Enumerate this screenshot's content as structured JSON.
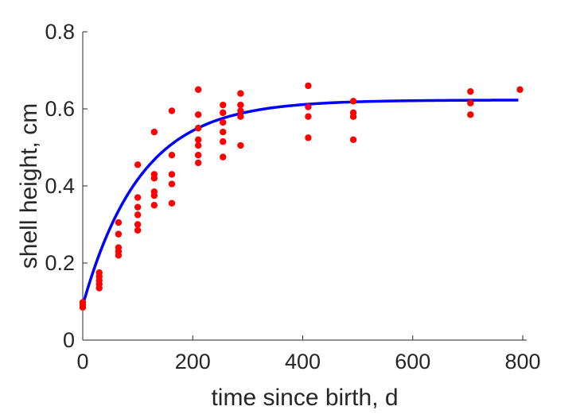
{
  "chart_data": {
    "type": "scatter",
    "xlabel": "time since birth, d",
    "ylabel": "shell height, cm",
    "xlim": [
      0,
      800
    ],
    "ylim": [
      0,
      0.8
    ],
    "xticks": [
      0,
      200,
      400,
      600,
      800
    ],
    "xtick_labels": [
      "0",
      "200",
      "400",
      "600",
      "800"
    ],
    "yticks": [
      0,
      0.2,
      0.4,
      0.6,
      0.8
    ],
    "ytick_labels": [
      "0",
      "0.2",
      "0.4",
      "0.6",
      "0.8"
    ],
    "grid": false,
    "legend": "none",
    "series": [
      {
        "kind": "points",
        "color": "#ff0000",
        "points": [
          [
            0,
            0.085
          ],
          [
            0,
            0.092
          ],
          [
            0,
            0.098
          ],
          [
            30,
            0.135
          ],
          [
            30,
            0.145
          ],
          [
            30,
            0.155
          ],
          [
            30,
            0.165
          ],
          [
            30,
            0.175
          ],
          [
            65,
            0.22
          ],
          [
            65,
            0.23
          ],
          [
            65,
            0.24
          ],
          [
            65,
            0.275
          ],
          [
            65,
            0.305
          ],
          [
            100,
            0.285
          ],
          [
            100,
            0.3
          ],
          [
            100,
            0.325
          ],
          [
            100,
            0.345
          ],
          [
            100,
            0.37
          ],
          [
            100,
            0.455
          ],
          [
            130,
            0.35
          ],
          [
            130,
            0.375
          ],
          [
            130,
            0.385
          ],
          [
            130,
            0.42
          ],
          [
            130,
            0.43
          ],
          [
            130,
            0.54
          ],
          [
            162,
            0.355
          ],
          [
            162,
            0.405
          ],
          [
            162,
            0.43
          ],
          [
            162,
            0.48
          ],
          [
            162,
            0.595
          ],
          [
            210,
            0.46
          ],
          [
            210,
            0.48
          ],
          [
            210,
            0.505
          ],
          [
            210,
            0.52
          ],
          [
            210,
            0.55
          ],
          [
            210,
            0.585
          ],
          [
            210,
            0.65
          ],
          [
            255,
            0.475
          ],
          [
            255,
            0.515
          ],
          [
            255,
            0.54
          ],
          [
            255,
            0.565
          ],
          [
            255,
            0.59
          ],
          [
            255,
            0.61
          ],
          [
            287,
            0.505
          ],
          [
            287,
            0.58
          ],
          [
            287,
            0.595
          ],
          [
            287,
            0.61
          ],
          [
            287,
            0.64
          ],
          [
            410,
            0.525
          ],
          [
            410,
            0.58
          ],
          [
            410,
            0.605
          ],
          [
            410,
            0.66
          ],
          [
            492,
            0.52
          ],
          [
            492,
            0.58
          ],
          [
            492,
            0.59
          ],
          [
            492,
            0.62
          ],
          [
            705,
            0.585
          ],
          [
            705,
            0.615
          ],
          [
            705,
            0.645
          ],
          [
            795,
            0.65
          ]
        ]
      },
      {
        "kind": "fit",
        "color": "#0000ff",
        "model": "von-bertalanffy",
        "y0": 0.09,
        "yinf": 0.623,
        "k": 0.0095,
        "xrange": [
          0,
          792
        ]
      }
    ]
  }
}
